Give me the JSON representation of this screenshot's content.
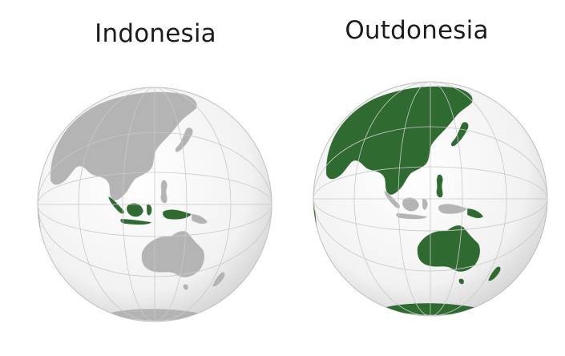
{
  "panels": [
    {
      "title": "Indonesia",
      "highlight_color": "#2f6b30",
      "land_color": "#b4b4b4",
      "mode": "highlight-country"
    },
    {
      "title": "Outdonesia",
      "highlight_color": "#2f6b30",
      "land_color": "#b4b4b4",
      "mode": "highlight-everything-else"
    }
  ],
  "colors": {
    "ocean_light": "#fbfbfb",
    "ocean_shade": "#cfcfcf",
    "graticule": "#c9c9c9",
    "border_lines": "#e6e6e6"
  }
}
